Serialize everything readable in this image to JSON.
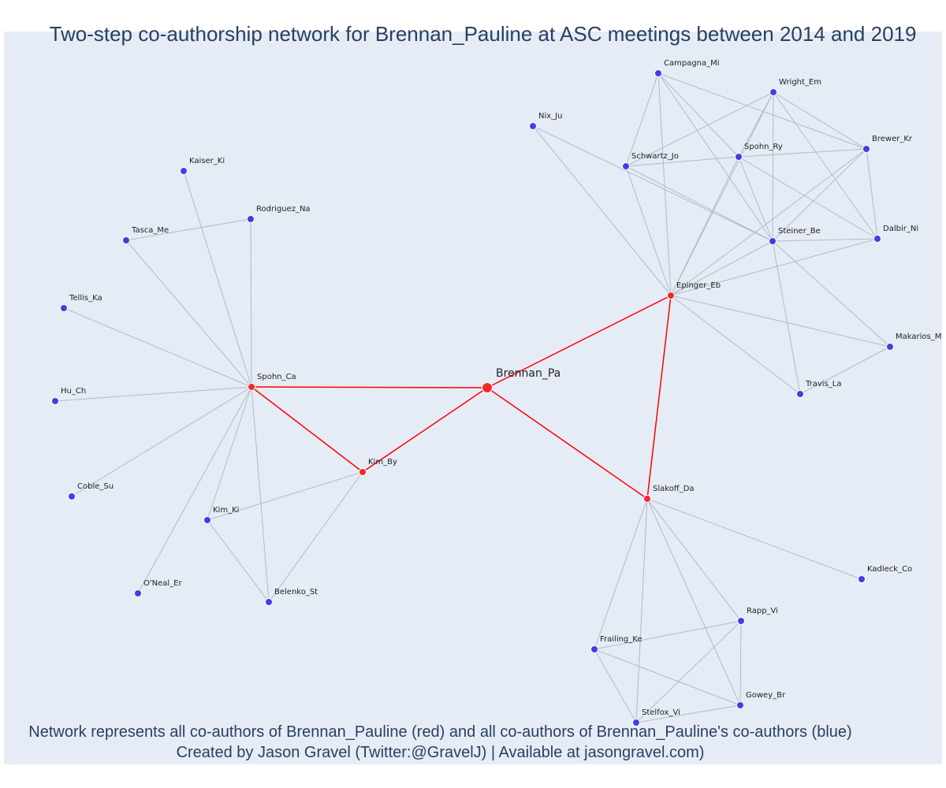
{
  "title": "Two-step co-authorship network for Brennan_Pauline at ASC meetings between 2014 and 2019",
  "footer": {
    "line1": "Network represents all co-authors of Brennan_Pauline (red) and all co-authors of Brennan_Pauline's co-authors (blue)",
    "line2": "Created by Jason Gravel (Twitter:@GravelJ) | Available at jasongravel.com)"
  },
  "colors": {
    "first_step": "#ef2b2b",
    "second_step": "#3f3fe6",
    "edge_first_step": "#ff0000",
    "edge_other": "#b5b9c9",
    "background": "#e5ecf6",
    "title_text": "#2a3f5f"
  },
  "nodes": [
    {
      "id": "Brennan_Pa",
      "group": "focal"
    },
    {
      "id": "Spohn_Ca",
      "group": "first"
    },
    {
      "id": "Kim_By",
      "group": "first"
    },
    {
      "id": "Epinger_Eb",
      "group": "first"
    },
    {
      "id": "Slakoff_Da",
      "group": "first"
    },
    {
      "id": "Kaiser_Ki",
      "group": "second"
    },
    {
      "id": "Rodriguez_Na",
      "group": "second"
    },
    {
      "id": "Tasca_Me",
      "group": "second"
    },
    {
      "id": "Tellis_Ka",
      "group": "second"
    },
    {
      "id": "Hu_Ch",
      "group": "second"
    },
    {
      "id": "Coble_Su",
      "group": "second"
    },
    {
      "id": "Kim_Ki",
      "group": "second"
    },
    {
      "id": "O'Neal_Er",
      "group": "second"
    },
    {
      "id": "Belenko_St",
      "group": "second"
    },
    {
      "id": "Campagna_Mi",
      "group": "second"
    },
    {
      "id": "Wright_Em",
      "group": "second"
    },
    {
      "id": "Nix_Ju",
      "group": "second"
    },
    {
      "id": "Brewer_Kr",
      "group": "second"
    },
    {
      "id": "Schwartz_Jo",
      "group": "second"
    },
    {
      "id": "Spohn_Ry",
      "group": "second"
    },
    {
      "id": "Steiner_Be",
      "group": "second"
    },
    {
      "id": "Dalbir_Ni",
      "group": "second"
    },
    {
      "id": "Makarios_Ma",
      "group": "second"
    },
    {
      "id": "Travis_La",
      "group": "second"
    },
    {
      "id": "Kadleck_Co",
      "group": "second"
    },
    {
      "id": "Rapp_Vi",
      "group": "second"
    },
    {
      "id": "Frailing_Ke",
      "group": "second"
    },
    {
      "id": "Gowey_Br",
      "group": "second"
    },
    {
      "id": "Stelfox_Vi",
      "group": "second"
    }
  ],
  "edges": [
    [
      "Brennan_Pa",
      "Spohn_Ca"
    ],
    [
      "Brennan_Pa",
      "Kim_By"
    ],
    [
      "Brennan_Pa",
      "Epinger_Eb"
    ],
    [
      "Brennan_Pa",
      "Slakoff_Da"
    ],
    [
      "Spohn_Ca",
      "Kim_By"
    ],
    [
      "Epinger_Eb",
      "Slakoff_Da"
    ],
    [
      "Spohn_Ca",
      "Kaiser_Ki"
    ],
    [
      "Spohn_Ca",
      "Rodriguez_Na"
    ],
    [
      "Spohn_Ca",
      "Tasca_Me"
    ],
    [
      "Tasca_Me",
      "Rodriguez_Na"
    ],
    [
      "Spohn_Ca",
      "Tellis_Ka"
    ],
    [
      "Spohn_Ca",
      "Hu_Ch"
    ],
    [
      "Spohn_Ca",
      "Coble_Su"
    ],
    [
      "Spohn_Ca",
      "Kim_Ki"
    ],
    [
      "Spohn_Ca",
      "O'Neal_Er"
    ],
    [
      "Spohn_Ca",
      "Belenko_St"
    ],
    [
      "Kim_By",
      "Kim_Ki"
    ],
    [
      "Kim_By",
      "Belenko_St"
    ],
    [
      "Kim_Ki",
      "Belenko_St"
    ],
    [
      "Epinger_Eb",
      "Nix_Ju"
    ],
    [
      "Epinger_Eb",
      "Campagna_Mi"
    ],
    [
      "Epinger_Eb",
      "Wright_Em"
    ],
    [
      "Epinger_Eb",
      "Schwartz_Jo"
    ],
    [
      "Epinger_Eb",
      "Spohn_Ry"
    ],
    [
      "Epinger_Eb",
      "Brewer_Kr"
    ],
    [
      "Epinger_Eb",
      "Steiner_Be"
    ],
    [
      "Epinger_Eb",
      "Dalbir_Ni"
    ],
    [
      "Epinger_Eb",
      "Makarios_Ma"
    ],
    [
      "Epinger_Eb",
      "Travis_La"
    ],
    [
      "Nix_Ju",
      "Steiner_Be"
    ],
    [
      "Campagna_Mi",
      "Schwartz_Jo"
    ],
    [
      "Campagna_Mi",
      "Spohn_Ry"
    ],
    [
      "Campagna_Mi",
      "Steiner_Be"
    ],
    [
      "Campagna_Mi",
      "Brewer_Kr"
    ],
    [
      "Wright_Em",
      "Schwartz_Jo"
    ],
    [
      "Wright_Em",
      "Spohn_Ry"
    ],
    [
      "Wright_Em",
      "Steiner_Be"
    ],
    [
      "Wright_Em",
      "Brewer_Kr"
    ],
    [
      "Wright_Em",
      "Dalbir_Ni"
    ],
    [
      "Schwartz_Jo",
      "Spohn_Ry"
    ],
    [
      "Schwartz_Jo",
      "Steiner_Be"
    ],
    [
      "Spohn_Ry",
      "Brewer_Kr"
    ],
    [
      "Spohn_Ry",
      "Steiner_Be"
    ],
    [
      "Spohn_Ry",
      "Dalbir_Ni"
    ],
    [
      "Brewer_Kr",
      "Steiner_Be"
    ],
    [
      "Brewer_Kr",
      "Dalbir_Ni"
    ],
    [
      "Steiner_Be",
      "Dalbir_Ni"
    ],
    [
      "Steiner_Be",
      "Travis_La"
    ],
    [
      "Steiner_Be",
      "Makarios_Ma"
    ],
    [
      "Makarios_Ma",
      "Travis_La"
    ],
    [
      "Slakoff_Da",
      "Kadleck_Co"
    ],
    [
      "Slakoff_Da",
      "Rapp_Vi"
    ],
    [
      "Slakoff_Da",
      "Frailing_Ke"
    ],
    [
      "Slakoff_Da",
      "Gowey_Br"
    ],
    [
      "Slakoff_Da",
      "Stelfox_Vi"
    ],
    [
      "Frailing_Ke",
      "Rapp_Vi"
    ],
    [
      "Frailing_Ke",
      "Gowey_Br"
    ],
    [
      "Frailing_Ke",
      "Stelfox_Vi"
    ],
    [
      "Rapp_Vi",
      "Gowey_Br"
    ],
    [
      "Rapp_Vi",
      "Stelfox_Vi"
    ],
    [
      "Gowey_Br",
      "Stelfox_Vi"
    ]
  ]
}
